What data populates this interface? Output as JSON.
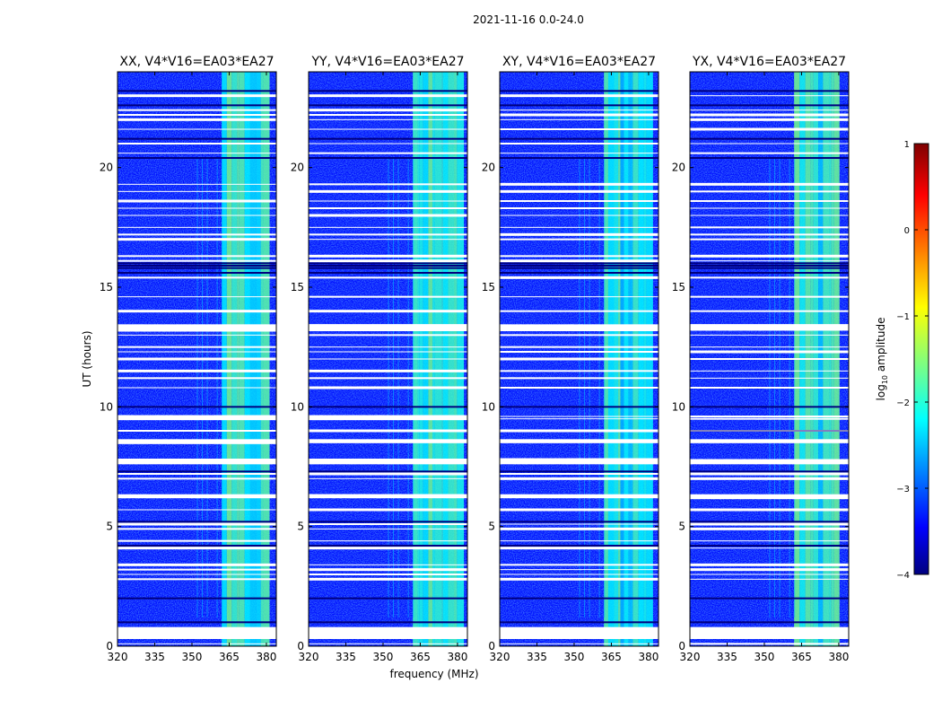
{
  "chart_data": {
    "type": "heatmap",
    "suptitle": "2021-11-16 0.0-24.0",
    "xlabel": "frequency (MHz)",
    "ylabel": "UT (hours)",
    "xlim": [
      320,
      384
    ],
    "ylim": [
      0,
      24
    ],
    "x_ticks": [
      320,
      335,
      350,
      365,
      380
    ],
    "x_tick_labels": [
      "320",
      "335",
      "350",
      "365",
      "380"
    ],
    "y_ticks": [
      0,
      5,
      10,
      15,
      20
    ],
    "y_tick_labels": [
      "0",
      "5",
      "10",
      "15",
      "20"
    ],
    "panels": [
      {
        "title": "XX, V4*V16=EA03*EA27"
      },
      {
        "title": "YY, V4*V16=EA03*EA27"
      },
      {
        "title": "XY, V4*V16=EA03*EA27"
      },
      {
        "title": "YX, V4*V16=EA03*EA27"
      }
    ],
    "colorbar": {
      "label": "log10 amplitude",
      "label_prefix": "log",
      "label_subscript": "10",
      "label_suffix": " amplitude",
      "range": [
        -4,
        1
      ],
      "ticks": [
        1,
        0,
        -1,
        -2,
        -3,
        -4
      ],
      "tick_labels": [
        "1",
        "0",
        "−1",
        "−2",
        "−3",
        "−4"
      ],
      "colormap": "jet"
    },
    "background_level": -3.3,
    "bright_band_mhz": [
      362,
      380
    ],
    "bright_band_level": -2.0,
    "flagged_rows_ut": [
      0.1,
      0.5,
      0.6,
      2.8,
      3.0,
      3.2,
      3.4,
      4.1,
      4.4,
      4.9,
      5.1,
      5.7,
      6.2,
      6.3,
      7.0,
      7.2,
      7.7,
      7.8,
      8.5,
      8.6,
      9.0,
      9.5,
      9.6,
      10.8,
      11.2,
      11.5,
      12.0,
      12.3,
      12.5,
      13.0,
      13.2,
      13.4,
      14.0,
      14.6,
      15.4,
      16.1,
      16.3,
      17.0,
      17.2,
      17.5,
      18.0,
      18.3,
      18.6,
      19.0,
      19.3,
      20.6,
      21.0,
      21.6,
      22.0,
      22.2,
      22.4,
      23.0
    ],
    "dark_rows_ut": [
      1.0,
      2.0,
      4.2,
      5.2,
      7.3,
      9.0,
      10.0,
      15.6,
      15.8,
      15.9,
      16.0,
      20.4,
      21.2,
      22.6,
      23.2
    ],
    "colors": {
      "background": "#ffffff",
      "axis": "#000000"
    }
  }
}
